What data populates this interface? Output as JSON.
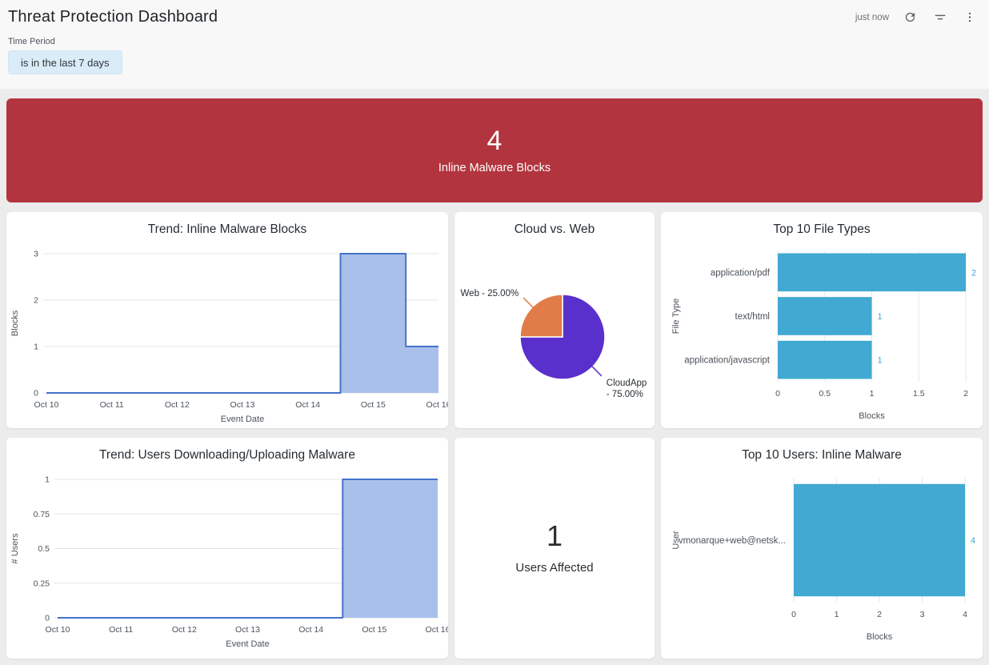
{
  "header": {
    "title": "Threat Protection Dashboard",
    "updated": "just now",
    "icons": [
      "refresh-icon",
      "filter-icon",
      "kebab-menu-icon"
    ]
  },
  "filter": {
    "label": "Time Period",
    "value": "is in the last 7 days"
  },
  "banner": {
    "value": "4",
    "label": "Inline Malware Blocks",
    "color": "#b2343e",
    "text_color": "#ffffff"
  },
  "users_affected": {
    "value": "1",
    "label": "Users Affected"
  },
  "chart_data": [
    {
      "id": "trend-inline-malware-blocks",
      "type": "area",
      "step": true,
      "title": "Trend: Inline Malware Blocks",
      "categories": [
        "Oct 10",
        "Oct 11",
        "Oct 12",
        "Oct 13",
        "Oct 14",
        "Oct 15",
        "Oct 16"
      ],
      "values": [
        0,
        0,
        0,
        0,
        0,
        3,
        1
      ],
      "xlabel": "Event Date",
      "ylabel": "Blocks",
      "yticks": [
        0,
        1,
        2,
        3
      ],
      "ylim": [
        0,
        3
      ],
      "grid": true,
      "line_color": "#4472ca",
      "fill_color": "#a9c0ea",
      "margins": {
        "l": 50,
        "r": 12,
        "t": 16,
        "b": 46
      }
    },
    {
      "id": "cloud-vs-web",
      "type": "pie",
      "title": "Cloud vs. Web",
      "slices": [
        {
          "name": "CloudApp",
          "value": 75,
          "label_lines": [
            "CloudApp",
            "- 75.00%"
          ],
          "color": "#5a30cc"
        },
        {
          "name": "Web",
          "value": 25,
          "label_lines": [
            "Web - 25.00%"
          ],
          "color": "#e07c47"
        }
      ]
    },
    {
      "id": "top-10-file-types",
      "type": "hbar",
      "title": "Top 10 File Types",
      "categories": [
        "application/pdf",
        "text/html",
        "application/javascript"
      ],
      "values": [
        2,
        1,
        1
      ],
      "xticks": [
        0,
        0.5,
        1,
        1.5,
        2
      ],
      "xlim": [
        0,
        2
      ],
      "xlabel": "Blocks",
      "ylabel": "File Type",
      "grid": true,
      "bar_color": "#41a9d2",
      "margins": {
        "l": 146,
        "r": 21,
        "t": 12,
        "b": 60
      }
    },
    {
      "id": "trend-users-downloading-uploading-malware",
      "type": "area",
      "step": true,
      "title": "Trend: Users Downloading/Uploading Malware",
      "categories": [
        "Oct 10",
        "Oct 11",
        "Oct 12",
        "Oct 13",
        "Oct 14",
        "Oct 15",
        "Oct 16"
      ],
      "values": [
        0,
        0,
        0,
        0,
        0,
        1,
        1
      ],
      "xlabel": "Event Date",
      "ylabel": "# Users",
      "yticks": [
        0,
        0.25,
        0.5,
        0.75,
        1
      ],
      "ylim": [
        0,
        1
      ],
      "grid": true,
      "line_color": "#4472ca",
      "fill_color": "#a9c0ea",
      "margins": {
        "l": 64,
        "r": 13,
        "t": 16,
        "b": 53
      }
    },
    {
      "id": "top-10-users-inline-malware",
      "type": "hbar",
      "title": "Top 10 Users: Inline Malware",
      "categories": [
        "vmonarque+web@netsk..."
      ],
      "values": [
        4
      ],
      "xticks": [
        0,
        1,
        2,
        3,
        4
      ],
      "xlim": [
        0,
        4
      ],
      "xlabel": "Blocks",
      "ylabel": "User",
      "grid": true,
      "bar_color": "#41a9d2",
      "margins": {
        "l": 166,
        "r": 22,
        "t": 14,
        "b": 72
      }
    }
  ]
}
